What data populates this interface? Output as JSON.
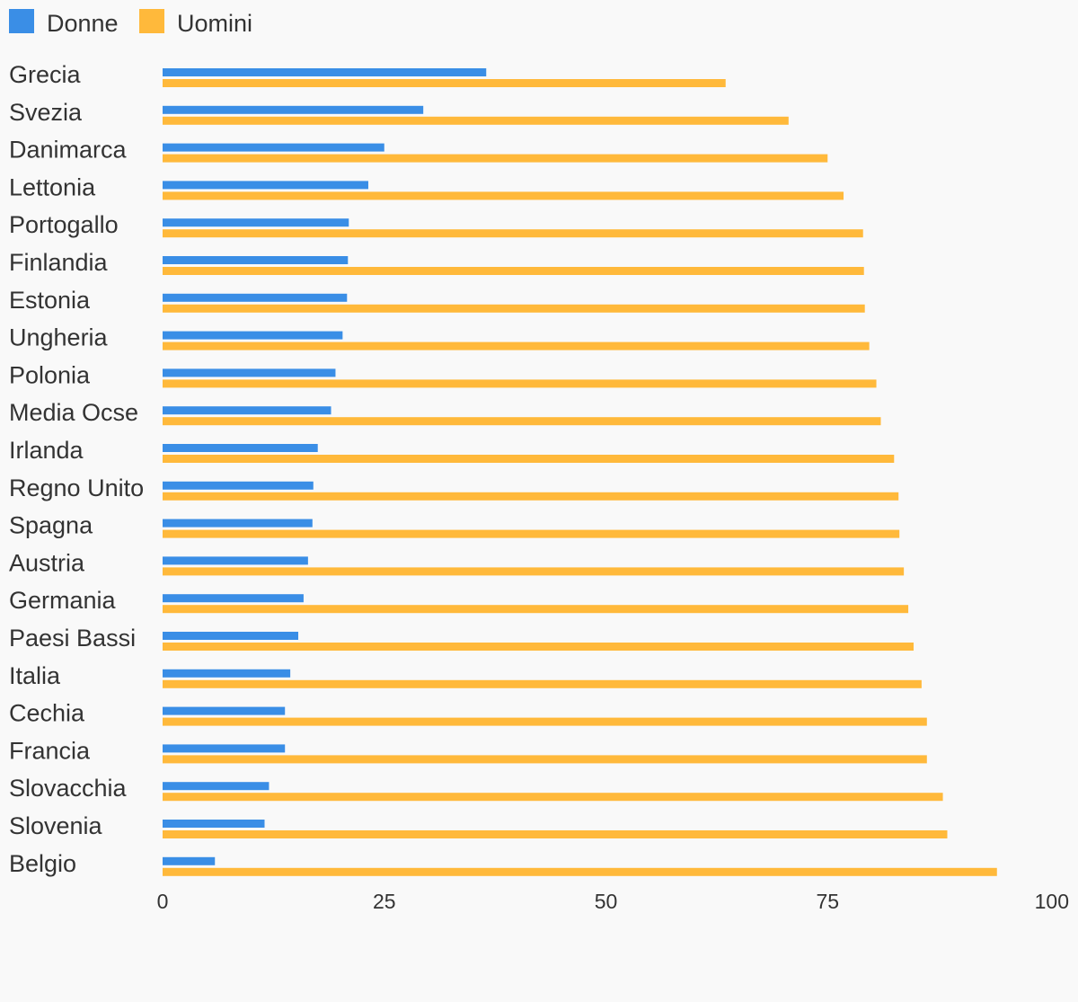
{
  "chart_data": {
    "type": "bar",
    "orientation": "horizontal",
    "title": "",
    "xlabel": "",
    "ylabel": "",
    "xlim": [
      0,
      100
    ],
    "xticks": [
      0,
      25,
      50,
      75,
      100
    ],
    "grid": false,
    "legend_position": "top-left",
    "categories": [
      "Grecia",
      "Svezia",
      "Danimarca",
      "Lettonia",
      "Portogallo",
      "Finlandia",
      "Estonia",
      "Ungheria",
      "Polonia",
      "Media Ocse",
      "Irlanda",
      "Regno Unito",
      "Spagna",
      "Austria",
      "Germania",
      "Paesi Bassi",
      "Italia",
      "Cechia",
      "Francia",
      "Slovacchia",
      "Slovenia",
      "Belgio"
    ],
    "series": [
      {
        "name": "Donne",
        "color": "#3a8ee6",
        "values": [
          36.5,
          29.4,
          25.0,
          23.2,
          21.0,
          20.9,
          20.8,
          20.3,
          19.5,
          19.0,
          17.5,
          17.0,
          16.9,
          16.4,
          15.9,
          15.3,
          14.4,
          13.8,
          13.8,
          12.0,
          11.5,
          5.9
        ]
      },
      {
        "name": "Uomini",
        "color": "#ffb93b",
        "values": [
          63.5,
          70.6,
          75.0,
          76.8,
          79.0,
          79.1,
          79.2,
          79.7,
          80.5,
          81.0,
          82.5,
          83.0,
          83.1,
          83.6,
          84.1,
          84.7,
          85.6,
          86.2,
          86.2,
          88.0,
          88.5,
          94.1
        ]
      }
    ]
  }
}
